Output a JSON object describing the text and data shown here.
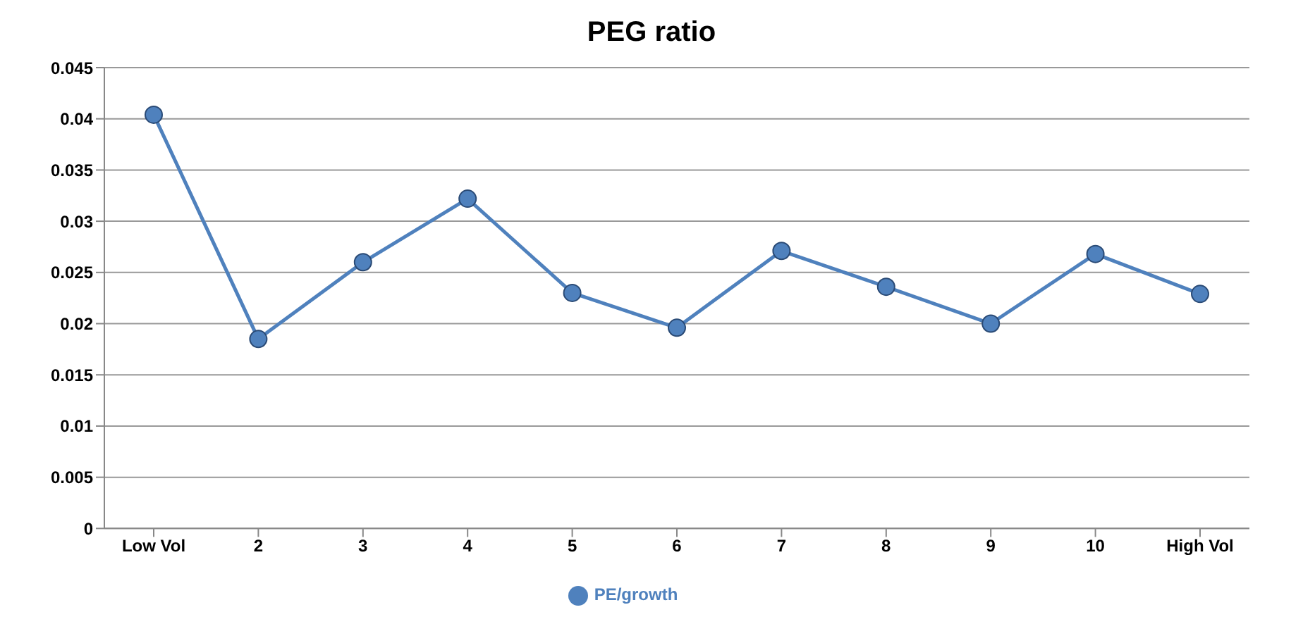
{
  "chart_data": {
    "type": "line",
    "title": "PEG ratio",
    "categories": [
      "Low Vol",
      "2",
      "3",
      "4",
      "5",
      "6",
      "7",
      "8",
      "9",
      "10",
      "High Vol"
    ],
    "series": [
      {
        "name": "PE/growth",
        "color": "#4f81bd",
        "values": [
          0.0404,
          0.0185,
          0.026,
          0.0322,
          0.023,
          0.0196,
          0.0271,
          0.0236,
          0.02,
          0.0268,
          0.0229
        ]
      }
    ],
    "ylim": [
      0,
      0.045
    ],
    "yticks": [
      0,
      0.005,
      0.01,
      0.015,
      0.02,
      0.025,
      0.03,
      0.035,
      0.04,
      0.045
    ],
    "grid": "y",
    "legend": "bottom",
    "marker": "circle",
    "line_style": "solid"
  }
}
